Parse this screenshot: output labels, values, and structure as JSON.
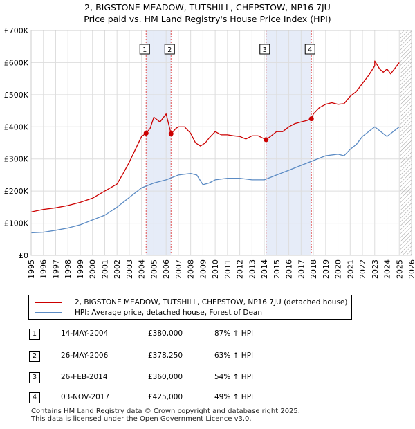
{
  "chart_data": {
    "type": "line",
    "title": "2, BIGSTONE MEADOW, TUTSHILL, CHEPSTOW, NP16 7JU",
    "subtitle": "Price paid vs. HM Land Registry's House Price Index (HPI)",
    "xlabel": "",
    "ylabel": "",
    "xlim": [
      1995,
      2026
    ],
    "ylim": [
      0,
      700000
    ],
    "x_ticks": [
      1995,
      1996,
      1997,
      1998,
      1999,
      2000,
      2001,
      2002,
      2003,
      2004,
      2005,
      2006,
      2007,
      2008,
      2009,
      2010,
      2011,
      2012,
      2013,
      2014,
      2015,
      2016,
      2017,
      2018,
      2019,
      2020,
      2021,
      2022,
      2023,
      2024,
      2025,
      2026
    ],
    "y_ticks": [
      {
        "value": 0,
        "label": "£0"
      },
      {
        "value": 100000,
        "label": "£100K"
      },
      {
        "value": 200000,
        "label": "£200K"
      },
      {
        "value": 300000,
        "label": "£300K"
      },
      {
        "value": 400000,
        "label": "£400K"
      },
      {
        "value": 500000,
        "label": "£500K"
      },
      {
        "value": 600000,
        "label": "£600K"
      },
      {
        "value": 700000,
        "label": "£700K"
      }
    ],
    "grid": true,
    "future_hatch_from": 2025.1,
    "series": [
      {
        "name": "2, BIGSTONE MEADOW, TUTSHILL, CHEPSTOW, NP16 7JU (detached house)",
        "color": "#cc0000",
        "x": [
          1995,
          1996,
          1997,
          1998,
          1999,
          2000,
          2001,
          2002,
          2002.5,
          2003,
          2003.5,
          2004,
          2004.37,
          2004.7,
          2005,
          2005.5,
          2006,
          2006.4,
          2006.8,
          2007,
          2007.5,
          2008,
          2008.4,
          2008.8,
          2009.2,
          2009.5,
          2010,
          2010.5,
          2011,
          2011.5,
          2012,
          2012.5,
          2013,
          2013.5,
          2014.15,
          2014.5,
          2015,
          2015.5,
          2016,
          2016.5,
          2017,
          2017.5,
          2017.84,
          2018,
          2018.5,
          2019,
          2019.5,
          2020,
          2020.5,
          2021,
          2021.5,
          2022,
          2022.5,
          2023,
          2023,
          2023.4,
          2023.7,
          2024,
          2024.3,
          2024.6,
          2025
        ],
        "y": [
          135000,
          143000,
          148000,
          155000,
          165000,
          178000,
          200000,
          222000,
          255000,
          290000,
          330000,
          370000,
          380000,
          395000,
          430000,
          415000,
          440000,
          378250,
          395000,
          400000,
          400000,
          380000,
          350000,
          340000,
          350000,
          365000,
          385000,
          375000,
          375000,
          372000,
          370000,
          362000,
          372000,
          372000,
          360000,
          370000,
          385000,
          385000,
          400000,
          410000,
          415000,
          420000,
          425000,
          440000,
          460000,
          470000,
          475000,
          470000,
          472000,
          495000,
          510000,
          535000,
          560000,
          590000,
          605000,
          580000,
          570000,
          580000,
          565000,
          580000,
          600000
        ]
      },
      {
        "name": "HPI: Average price, detached house, Forest of Dean",
        "color": "#5b8bc4",
        "x": [
          1995,
          1996,
          1997,
          1998,
          1999,
          2000,
          2001,
          2002,
          2003,
          2004,
          2005,
          2006,
          2007,
          2008,
          2008.5,
          2009,
          2009.5,
          2010,
          2011,
          2012,
          2013,
          2014,
          2015,
          2016,
          2017,
          2018,
          2019,
          2020,
          2020.5,
          2021,
          2021.5,
          2022,
          2022.5,
          2023,
          2023.5,
          2024,
          2024.5,
          2025
        ],
        "y": [
          70000,
          72000,
          78000,
          85000,
          95000,
          110000,
          125000,
          150000,
          180000,
          210000,
          225000,
          235000,
          250000,
          255000,
          250000,
          220000,
          225000,
          235000,
          240000,
          240000,
          235000,
          235000,
          250000,
          265000,
          280000,
          295000,
          310000,
          315000,
          310000,
          330000,
          345000,
          370000,
          385000,
          400000,
          385000,
          370000,
          385000,
          400000
        ]
      }
    ],
    "sales": [
      {
        "label": "1",
        "x": 2004.37,
        "y": 380000
      },
      {
        "label": "2",
        "x": 2006.4,
        "y": 378250
      },
      {
        "label": "3",
        "x": 2014.15,
        "y": 360000
      },
      {
        "label": "4",
        "x": 2017.84,
        "y": 425000
      }
    ],
    "legend_position": "below"
  },
  "sales_table": [
    {
      "num": "1",
      "date": "14-MAY-2004",
      "price": "£380,000",
      "hpi": "87% ↑ HPI"
    },
    {
      "num": "2",
      "date": "26-MAY-2006",
      "price": "£378,250",
      "hpi": "63% ↑ HPI"
    },
    {
      "num": "3",
      "date": "26-FEB-2014",
      "price": "£360,000",
      "hpi": "54% ↑ HPI"
    },
    {
      "num": "4",
      "date": "03-NOV-2017",
      "price": "£425,000",
      "hpi": "49% ↑ HPI"
    }
  ],
  "footer": {
    "line1": "Contains HM Land Registry data © Crown copyright and database right 2025.",
    "line2": "This data is licensed under the Open Government Licence v3.0."
  }
}
